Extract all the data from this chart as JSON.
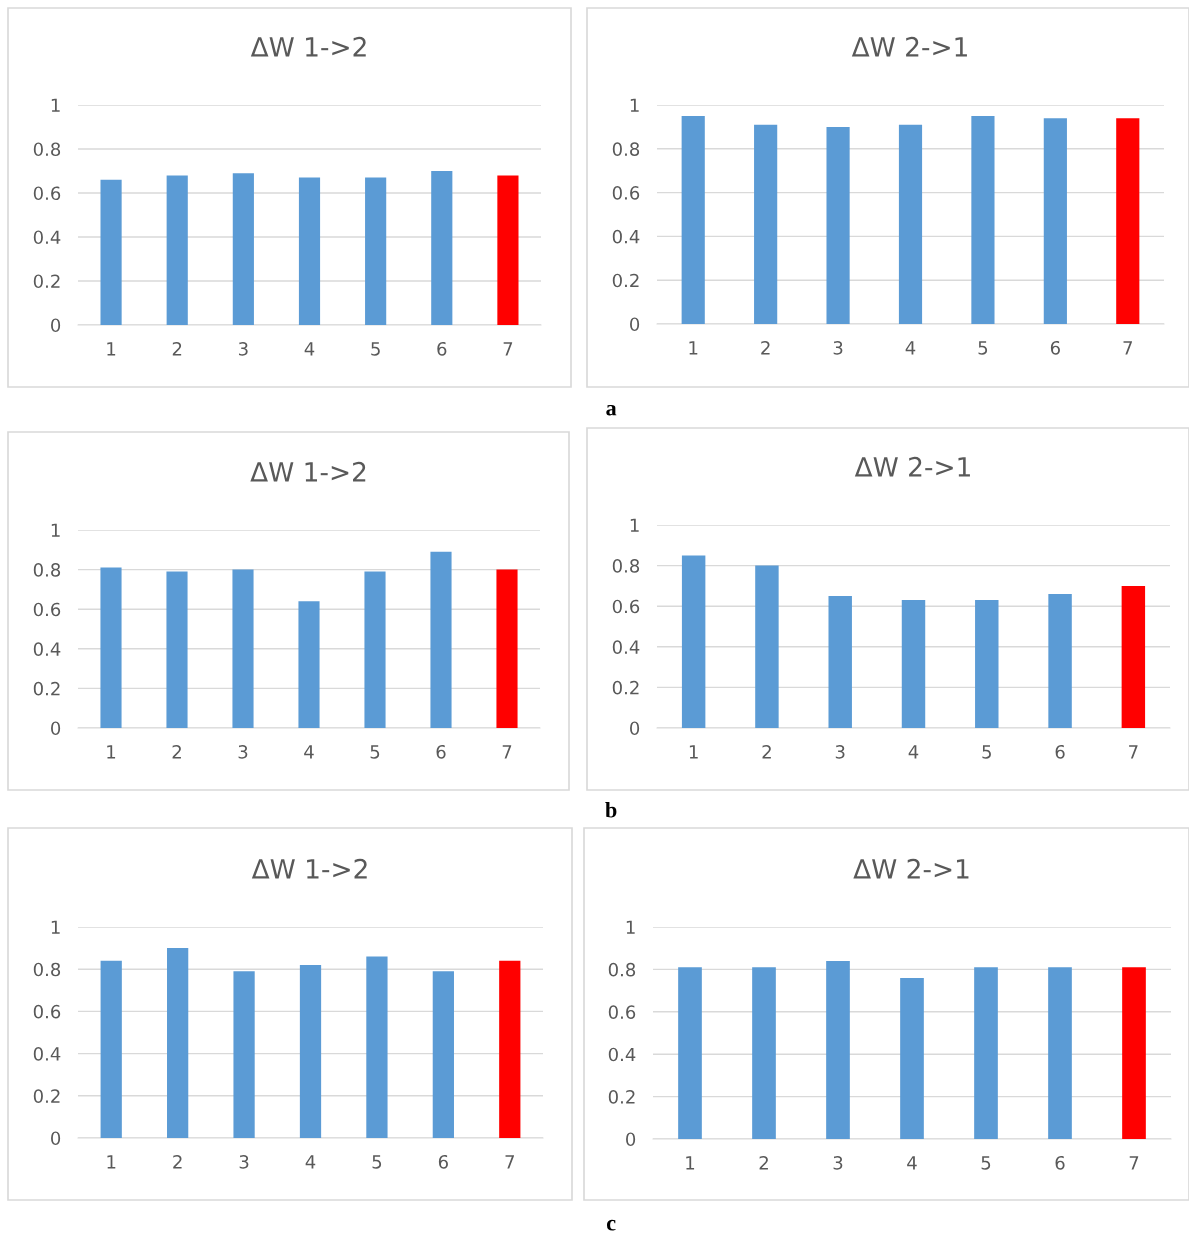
{
  "chart_data": [
    {
      "type": "bar",
      "title": "ΔW 1->2",
      "categories": [
        "1",
        "2",
        "3",
        "4",
        "5",
        "6",
        "7"
      ],
      "values": [
        0.66,
        0.68,
        0.69,
        0.67,
        0.67,
        0.7,
        0.68
      ],
      "colors": [
        "#5b9bd5",
        "#5b9bd5",
        "#5b9bd5",
        "#5b9bd5",
        "#5b9bd5",
        "#5b9bd5",
        "#ff0000"
      ],
      "ylim": [
        0,
        1
      ],
      "yticks": [
        0,
        0.2,
        0.4,
        0.6,
        0.8,
        1
      ],
      "grid": "y",
      "legend": false
    },
    {
      "type": "bar",
      "title": "ΔW 2->1",
      "categories": [
        "1",
        "2",
        "3",
        "4",
        "5",
        "6",
        "7"
      ],
      "values": [
        0.95,
        0.91,
        0.9,
        0.91,
        0.95,
        0.94,
        0.94
      ],
      "colors": [
        "#5b9bd5",
        "#5b9bd5",
        "#5b9bd5",
        "#5b9bd5",
        "#5b9bd5",
        "#5b9bd5",
        "#ff0000"
      ],
      "ylim": [
        0,
        1
      ],
      "yticks": [
        0,
        0.2,
        0.4,
        0.6,
        0.8,
        1
      ],
      "grid": "y",
      "legend": false,
      "annotations": [
        "a"
      ]
    },
    {
      "type": "bar",
      "title": "ΔW 1->2",
      "categories": [
        "1",
        "2",
        "3",
        "4",
        "5",
        "6",
        "7"
      ],
      "values": [
        0.81,
        0.79,
        0.8,
        0.64,
        0.79,
        0.89,
        0.8
      ],
      "colors": [
        "#5b9bd5",
        "#5b9bd5",
        "#5b9bd5",
        "#5b9bd5",
        "#5b9bd5",
        "#5b9bd5",
        "#ff0000"
      ],
      "ylim": [
        0,
        1
      ],
      "yticks": [
        0,
        0.2,
        0.4,
        0.6,
        0.8,
        1
      ],
      "grid": "y",
      "legend": false
    },
    {
      "type": "bar",
      "title": "ΔW 2->1",
      "categories": [
        "1",
        "2",
        "3",
        "4",
        "5",
        "6",
        "7"
      ],
      "values": [
        0.85,
        0.8,
        0.65,
        0.63,
        0.63,
        0.66,
        0.7
      ],
      "colors": [
        "#5b9bd5",
        "#5b9bd5",
        "#5b9bd5",
        "#5b9bd5",
        "#5b9bd5",
        "#5b9bd5",
        "#ff0000"
      ],
      "ylim": [
        0,
        1
      ],
      "yticks": [
        0,
        0.2,
        0.4,
        0.6,
        0.8,
        1
      ],
      "grid": "y",
      "legend": false,
      "annotations": [
        "b"
      ]
    },
    {
      "type": "bar",
      "title": "ΔW 1->2",
      "categories": [
        "1",
        "2",
        "3",
        "4",
        "5",
        "6",
        "7"
      ],
      "values": [
        0.84,
        0.9,
        0.79,
        0.82,
        0.86,
        0.79,
        0.84
      ],
      "colors": [
        "#5b9bd5",
        "#5b9bd5",
        "#5b9bd5",
        "#5b9bd5",
        "#5b9bd5",
        "#5b9bd5",
        "#ff0000"
      ],
      "ylim": [
        0,
        1
      ],
      "yticks": [
        0,
        0.2,
        0.4,
        0.6,
        0.8,
        1
      ],
      "grid": "y",
      "legend": false
    },
    {
      "type": "bar",
      "title": "ΔW 2->1",
      "categories": [
        "1",
        "2",
        "3",
        "4",
        "5",
        "6",
        "7"
      ],
      "values": [
        0.81,
        0.81,
        0.84,
        0.76,
        0.81,
        0.81,
        0.81
      ],
      "colors": [
        "#5b9bd5",
        "#5b9bd5",
        "#5b9bd5",
        "#5b9bd5",
        "#5b9bd5",
        "#5b9bd5",
        "#ff0000"
      ],
      "ylim": [
        0,
        1
      ],
      "yticks": [
        0,
        0.2,
        0.4,
        0.6,
        0.8,
        1
      ],
      "grid": "y",
      "legend": false,
      "annotations": [
        "c"
      ]
    }
  ]
}
